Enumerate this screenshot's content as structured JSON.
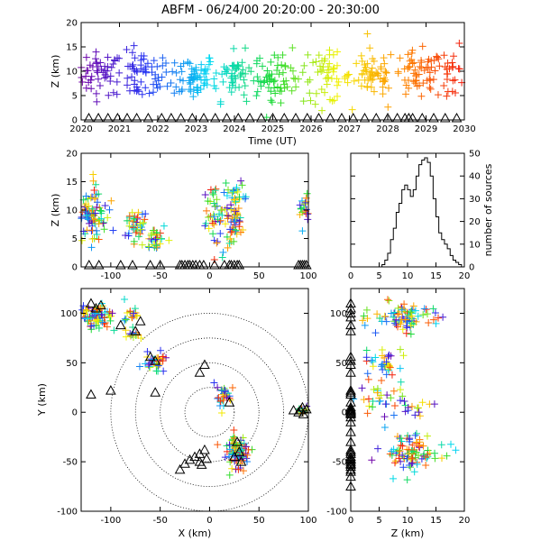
{
  "title": "ABFM - 06/24/00 20:20:00 - 20:30:00",
  "chart_data": [
    {
      "panel": "altitude-time",
      "type": "scatter",
      "xlabel": "Time (UT)",
      "ylabel": "Z (km)",
      "xlim": [
        2020,
        2030
      ],
      "ylim": [
        0,
        20
      ],
      "xticks": [
        "2020",
        "2021",
        "2022",
        "2023",
        "2024",
        "2025",
        "2026",
        "2027",
        "2028",
        "2029",
        "2030"
      ],
      "yticks": [
        "0",
        "5",
        "10",
        "15",
        "20"
      ],
      "marker": "plus",
      "color_by_time": true,
      "clusters": [
        {
          "x": 2020.5,
          "xs": 0.6,
          "z": 9.5,
          "zs": 2.2,
          "n": 50
        },
        {
          "x": 2021.6,
          "xs": 0.7,
          "z": 9,
          "zs": 2.5,
          "n": 60
        },
        {
          "x": 2022.9,
          "xs": 0.6,
          "z": 9,
          "zs": 2.5,
          "n": 60
        },
        {
          "x": 2024.0,
          "xs": 0.7,
          "z": 9,
          "zs": 2.5,
          "n": 60
        },
        {
          "x": 2025.2,
          "xs": 0.7,
          "z": 9,
          "zs": 2.5,
          "n": 55
        },
        {
          "x": 2026.4,
          "xs": 0.6,
          "z": 8.5,
          "zs": 2.5,
          "n": 50
        },
        {
          "x": 2027.6,
          "xs": 0.6,
          "z": 9.5,
          "zs": 2.5,
          "n": 55
        },
        {
          "x": 2028.8,
          "xs": 0.7,
          "z": 9,
          "zs": 2.5,
          "n": 60
        },
        {
          "x": 2029.7,
          "xs": 0.3,
          "z": 10,
          "zs": 3,
          "n": 25
        }
      ],
      "stations_x": [
        2020.2,
        2020.45,
        2020.7,
        2020.95,
        2021.2,
        2021.45,
        2021.75,
        2022.1,
        2022.35,
        2022.6,
        2022.9,
        2023.2,
        2023.5,
        2023.8,
        2024.1,
        2024.4,
        2024.7,
        2025.0,
        2025.3,
        2025.6,
        2025.9,
        2026.2,
        2026.5,
        2026.8,
        2027.1,
        2027.4,
        2027.7,
        2028.0,
        2028.25,
        2028.45,
        2028.55,
        2028.65,
        2028.9,
        2029.2,
        2029.5,
        2029.8
      ]
    },
    {
      "panel": "altitude-x",
      "type": "scatter",
      "ylabel": "Z (km)",
      "xlim": [
        -130,
        100
      ],
      "ylim": [
        0,
        20
      ],
      "xticks": [
        "-100",
        "-50",
        "0",
        "50",
        "100"
      ],
      "yticks": [
        "0",
        "5",
        "10",
        "15",
        "20"
      ],
      "marker": "plus",
      "clusters": [
        {
          "x": -120,
          "xs": 8,
          "z": 9,
          "zs": 2.3,
          "n": 90
        },
        {
          "x": -75,
          "xs": 6,
          "z": 7,
          "zs": 1.5,
          "n": 40
        },
        {
          "x": -55,
          "xs": 5,
          "z": 5,
          "zs": 1.2,
          "n": 30
        },
        {
          "x": 5,
          "xs": 6,
          "z": 10,
          "zs": 3,
          "n": 45
        },
        {
          "x": 25,
          "xs": 5,
          "z": 9,
          "zs": 3,
          "n": 70
        },
        {
          "x": 95,
          "xs": 3,
          "z": 10,
          "zs": 1.5,
          "n": 20
        }
      ],
      "stations_x": [
        -122,
        -112,
        -90,
        -78,
        -60,
        -50,
        -30,
        -28,
        -25,
        -22,
        -20,
        -17,
        -14,
        -10,
        -6,
        5,
        15,
        20,
        22,
        25,
        28,
        30,
        90,
        92,
        94,
        96,
        98
      ]
    },
    {
      "panel": "altitude-histogram",
      "type": "bar",
      "ylabel": "number of sources",
      "xlim": [
        0,
        20
      ],
      "ylim": [
        0,
        50
      ],
      "xticks": [
        "0",
        "5",
        "10",
        "15",
        "20"
      ],
      "yticks": [
        "0",
        "10",
        "20",
        "30",
        "40",
        "50"
      ],
      "bin_width": 0.5,
      "values": [
        0,
        0,
        0,
        0,
        0,
        0,
        0,
        0,
        0,
        0,
        0,
        1,
        3,
        6,
        12,
        17,
        24,
        28,
        34,
        36,
        34,
        31,
        34,
        40,
        45,
        47,
        48,
        46,
        40,
        30,
        22,
        15,
        12,
        10,
        8,
        5,
        3,
        2,
        1,
        0
      ]
    },
    {
      "panel": "plan-view",
      "type": "scatter",
      "xlabel": "X (km)",
      "ylabel": "Y (km)",
      "xlim": [
        -130,
        100
      ],
      "ylim": [
        -100,
        125
      ],
      "xticks": [
        "-100",
        "-50",
        "0",
        "50",
        "100"
      ],
      "yticks": [
        "-100",
        "-50",
        "0",
        "50",
        "100"
      ],
      "range_rings_km": [
        25,
        50,
        75,
        100
      ],
      "marker": "plus",
      "clusters": [
        {
          "x": -115,
          "xs": 8,
          "y": 97,
          "ys": 6,
          "n": 80
        },
        {
          "x": -80,
          "xs": 4,
          "y": 100,
          "ys": 4,
          "n": 15
        },
        {
          "x": -78,
          "xs": 4,
          "y": 78,
          "ys": 3,
          "n": 15
        },
        {
          "x": -55,
          "xs": 5,
          "y": 50,
          "ys": 5,
          "n": 35
        },
        {
          "x": 15,
          "xs": 5,
          "y": 15,
          "ys": 6,
          "n": 30
        },
        {
          "x": 28,
          "xs": 6,
          "y": -40,
          "ys": 8,
          "n": 90
        },
        {
          "x": 95,
          "xs": 3,
          "y": 2,
          "ys": 2,
          "n": 10
        }
      ],
      "stations": [
        [
          -120,
          110
        ],
        [
          -115,
          105
        ],
        [
          -110,
          108
        ],
        [
          -90,
          88
        ],
        [
          -70,
          92
        ],
        [
          -75,
          82
        ],
        [
          -60,
          56
        ],
        [
          -55,
          52
        ],
        [
          -120,
          18
        ],
        [
          -100,
          22
        ],
        [
          -55,
          20
        ],
        [
          -5,
          48
        ],
        [
          -10,
          40
        ],
        [
          20,
          10
        ],
        [
          28,
          -30
        ],
        [
          30,
          -40
        ],
        [
          25,
          -45
        ],
        [
          32,
          -50
        ],
        [
          -5,
          -38
        ],
        [
          -10,
          -42
        ],
        [
          -15,
          -45
        ],
        [
          -20,
          -48
        ],
        [
          -25,
          -52
        ],
        [
          -30,
          -58
        ],
        [
          -10,
          -50
        ],
        [
          -3,
          -47
        ],
        [
          -8,
          -53
        ],
        [
          90,
          0
        ],
        [
          92,
          2
        ],
        [
          95,
          -2
        ],
        [
          98,
          3
        ],
        [
          94,
          5
        ],
        [
          85,
          2
        ]
      ]
    },
    {
      "panel": "altitude-y",
      "type": "scatter",
      "xlabel": "Z (km)",
      "xlim": [
        0,
        20
      ],
      "ylim": [
        -100,
        125
      ],
      "xticks": [
        "0",
        "5",
        "10",
        "15",
        "20"
      ],
      "yticks": [
        "-100",
        "-50",
        "0",
        "50",
        "100"
      ],
      "marker": "plus",
      "clusters": [
        {
          "z": 10,
          "zs": 3,
          "y": 97,
          "ys": 7,
          "n": 80
        },
        {
          "z": 6,
          "zs": 1.5,
          "y": 50,
          "ys": 8,
          "n": 35
        },
        {
          "z": 5,
          "zs": 2,
          "y": 15,
          "ys": 8,
          "n": 25
        },
        {
          "z": 11,
          "zs": 3,
          "y": -40,
          "ys": 9,
          "n": 90
        },
        {
          "z": 9,
          "zs": 3,
          "y": 0,
          "ys": 6,
          "n": 20
        }
      ],
      "stations_y": [
        110,
        105,
        100,
        96,
        88,
        82,
        56,
        52,
        48,
        40,
        22,
        20,
        18,
        10,
        5,
        3,
        2,
        1,
        0,
        -1,
        -2,
        -5,
        -10,
        -20,
        -30,
        -38,
        -40,
        -42,
        -45,
        -47,
        -48,
        -50,
        -52,
        -53,
        -55,
        -58,
        -60,
        -65,
        -75
      ]
    }
  ]
}
